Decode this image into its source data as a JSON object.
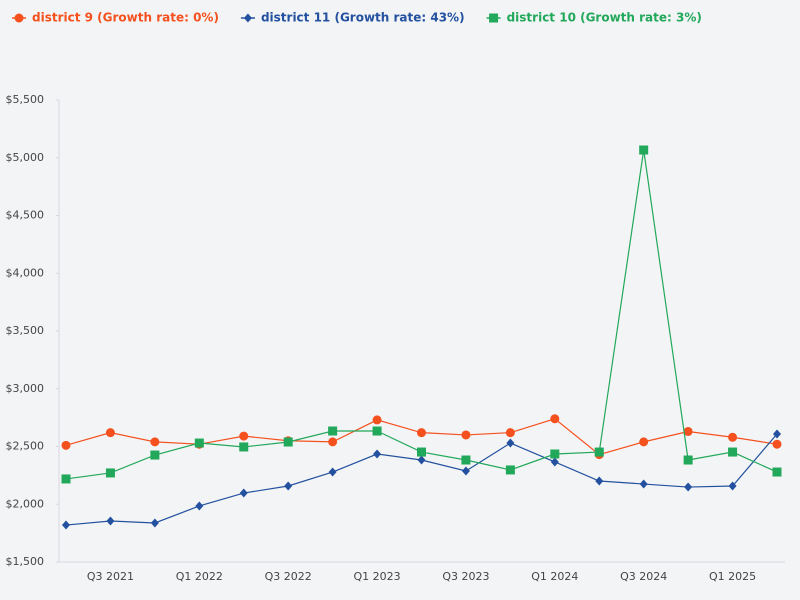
{
  "chart_data": {
    "type": "line",
    "categories": [
      null,
      "Q3 2021",
      null,
      "Q1 2022",
      null,
      "Q3 2022",
      null,
      "Q1 2023",
      null,
      "Q3 2023",
      null,
      "Q1 2024",
      null,
      "Q3 2024",
      null,
      "Q1 2025",
      null
    ],
    "series": [
      {
        "name": "district 9 (Growth rate: 0%)",
        "color": "#f4511e",
        "marker": "circle",
        "values": [
          2510,
          2620,
          2540,
          2520,
          2590,
          2550,
          2540,
          2730,
          2620,
          2600,
          2620,
          2740,
          2430,
          2540,
          2630,
          2580,
          2520
        ]
      },
      {
        "name": "district 11 (Growth rate: 43%)",
        "color": "#23519f",
        "marker": "diamond",
        "values": [
          1820,
          1855,
          1838,
          1985,
          2097,
          2158,
          2279,
          2435,
          2383,
          2288,
          2530,
          2366,
          2201,
          2175,
          2149,
          2158,
          2608
        ]
      },
      {
        "name": "district 10 (Growth rate: 3%)",
        "color": "#22a85a",
        "marker": "square",
        "values": [
          2219,
          2271,
          2426,
          2530,
          2496,
          2539,
          2634,
          2634,
          2452,
          2383,
          2297,
          2435,
          2452,
          5067,
          2383,
          2452,
          2279
        ]
      }
    ],
    "ylim": [
      1500,
      5500
    ],
    "yticks": [
      {
        "value": 1500,
        "label": "$1,500"
      },
      {
        "value": 2000,
        "label": "$2,000"
      },
      {
        "value": 2500,
        "label": "$2,500"
      },
      {
        "value": 3000,
        "label": "$3,000"
      },
      {
        "value": 3500,
        "label": "$3,500"
      },
      {
        "value": 4000,
        "label": "$4,000"
      },
      {
        "value": 4500,
        "label": "$4,500"
      },
      {
        "value": 5000,
        "label": "$5,000"
      },
      {
        "value": 5500,
        "label": "$5,500"
      }
    ],
    "grid": false,
    "legend": "top-left"
  }
}
